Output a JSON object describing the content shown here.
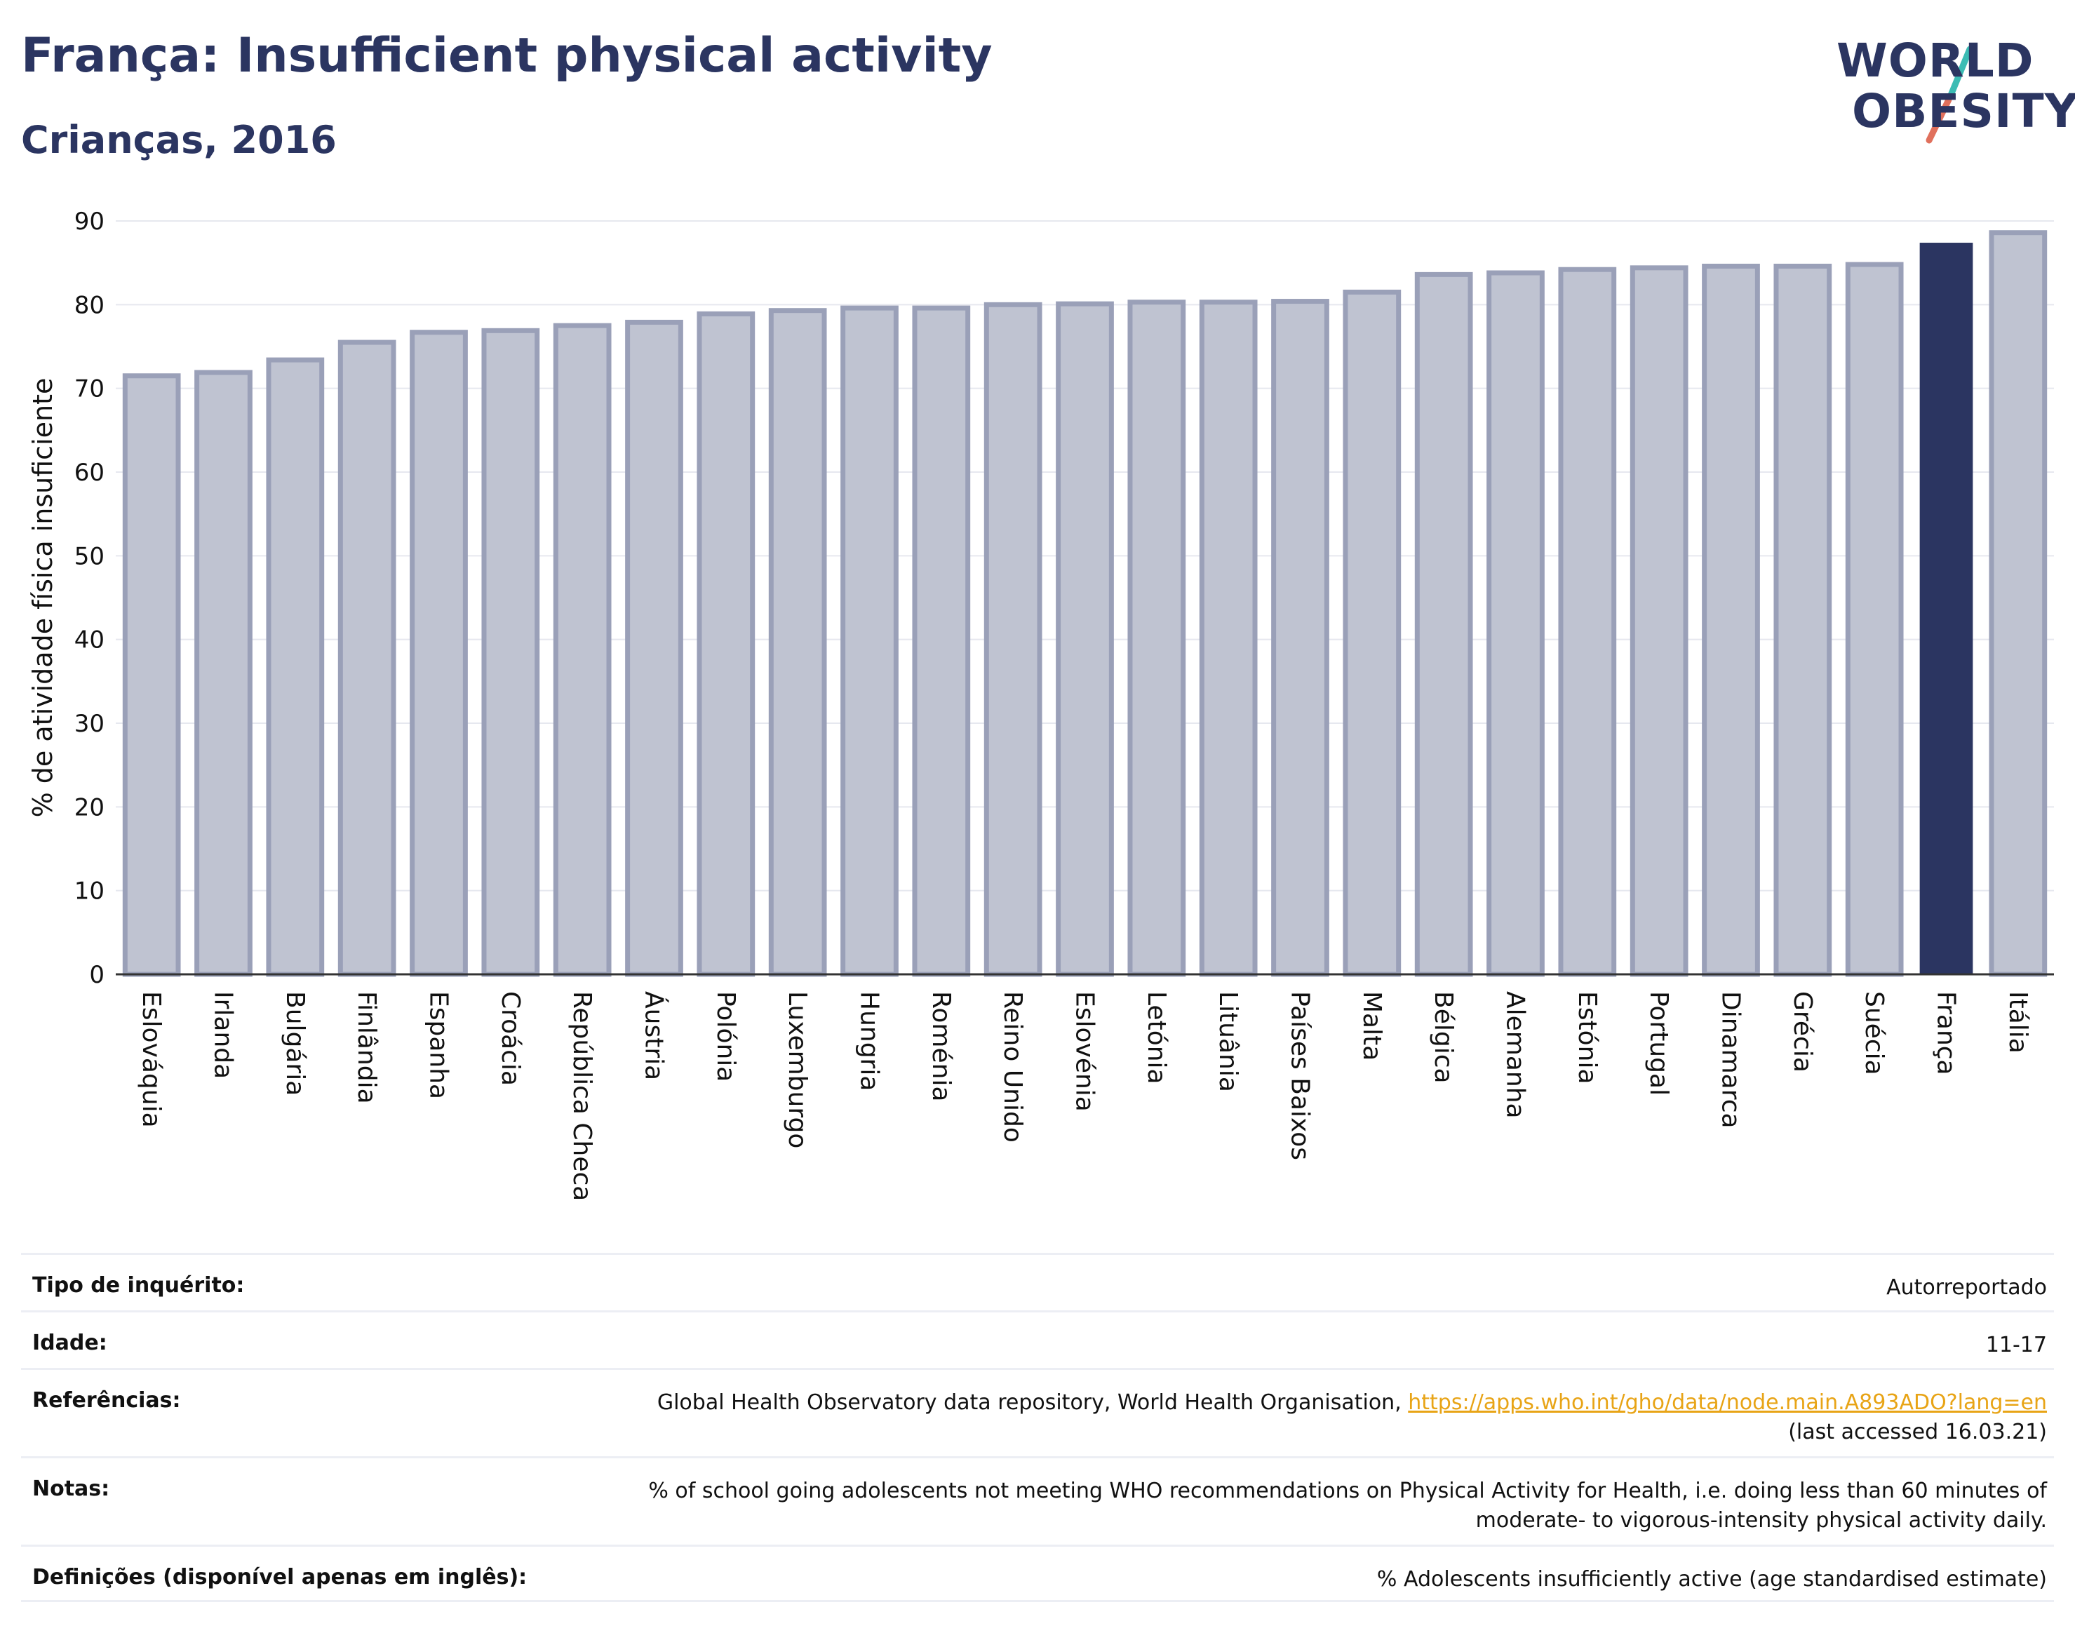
{
  "header": {
    "title": "França: Insufficient physical activity",
    "subtitle": "Crianças, 2016"
  },
  "logo": {
    "line1": "WORLD",
    "line2": "OBESITY"
  },
  "colors": {
    "bar": "#bfc3d1",
    "bar_border": "#9aa0b8",
    "highlight": "#2b3561",
    "title": "#2b3561",
    "link": "#e8a416"
  },
  "chart_data": {
    "type": "bar",
    "title": "França: Insufficient physical activity",
    "subtitle": "Crianças, 2016",
    "xlabel": "",
    "ylabel": "% de atividade física insuficiente",
    "ylim": [
      0,
      90
    ],
    "yticks": [
      0,
      10,
      20,
      30,
      40,
      50,
      60,
      70,
      80,
      90
    ],
    "grid": true,
    "highlight": "França",
    "categories": [
      "Eslováquia",
      "Irlanda",
      "Bulgária",
      "Finlândia",
      "Espanha",
      "Croácia",
      "República Checa",
      "Áustria",
      "Polónia",
      "Luxemburgo",
      "Hungria",
      "Roménia",
      "Reino Unido",
      "Eslovénia",
      "Letónia",
      "Lituânia",
      "Países Baixos",
      "Malta",
      "Bélgica",
      "Alemanha",
      "Estónia",
      "Portugal",
      "Dinamarca",
      "Grécia",
      "Suécia",
      "França",
      "Itália"
    ],
    "values": [
      71.5,
      71.9,
      73.4,
      75.5,
      76.7,
      76.9,
      77.5,
      77.9,
      78.9,
      79.3,
      79.6,
      79.6,
      80.0,
      80.1,
      80.3,
      80.3,
      80.4,
      81.5,
      83.6,
      83.8,
      84.2,
      84.4,
      84.6,
      84.6,
      84.8,
      87.4,
      88.6
    ]
  },
  "info": {
    "rows": [
      {
        "label": "Tipo de inquérito:",
        "value": "Autorreportado"
      },
      {
        "label": "Idade:",
        "value": "11-17"
      },
      {
        "label": "Referências:",
        "value": "Global Health Observatory data repository, World Health Organisation, ",
        "link": "https://apps.who.int/gho/data/node.main.A893ADO?lang=en",
        "value2": "(last accessed 16.03.21)"
      },
      {
        "label": "Notas:",
        "value": "% of school going adolescents not meeting WHO recommendations on Physical Activity for Health, i.e. doing less than 60 minutes of",
        "value2": "moderate- to vigorous-intensity physical activity daily."
      },
      {
        "label": "Definições (disponível apenas em inglês):",
        "value": "% Adolescents insufficiently active (age standardised estimate)"
      }
    ]
  }
}
